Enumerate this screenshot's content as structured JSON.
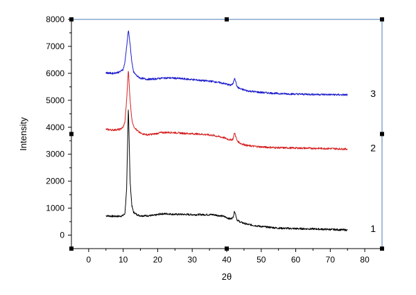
{
  "chart_data": {
    "type": "line",
    "title": "",
    "xlabel": "2θ",
    "ylabel": "Intensity",
    "xlim": [
      -5,
      85
    ],
    "ylim": [
      -500,
      8000
    ],
    "xticks": [
      0,
      10,
      20,
      30,
      40,
      50,
      60,
      70,
      80
    ],
    "yticks": [
      0,
      1000,
      2000,
      3000,
      4000,
      5000,
      6000,
      7000,
      8000
    ],
    "grid": false,
    "frame_color": "#4a7ab5",
    "series": [
      {
        "name": "1",
        "color": "#000000",
        "x": [
          5,
          7,
          9,
          10,
          10.5,
          11,
          11.5,
          12,
          12.5,
          13,
          14,
          15,
          17,
          19,
          21,
          23,
          25,
          27,
          30,
          33,
          36,
          39,
          41,
          41.8,
          42.3,
          43,
          44,
          46,
          50,
          55,
          60,
          65,
          70,
          75
        ],
        "values": [
          720,
          700,
          700,
          730,
          800,
          1700,
          4800,
          2000,
          1100,
          850,
          760,
          720,
          720,
          730,
          790,
          790,
          770,
          770,
          760,
          760,
          760,
          700,
          600,
          650,
          900,
          560,
          480,
          400,
          320,
          260,
          240,
          230,
          210,
          190
        ]
      },
      {
        "name": "2",
        "color": "#d62020",
        "x": [
          5,
          7,
          9,
          10,
          10.5,
          11,
          11.5,
          12,
          12.5,
          13,
          14,
          15,
          17,
          19,
          21,
          23,
          25,
          27,
          30,
          33,
          36,
          39,
          41,
          41.8,
          42.3,
          43,
          44,
          46,
          50,
          55,
          60,
          65,
          70,
          75
        ],
        "values": [
          3920,
          3900,
          3920,
          4000,
          4200,
          5000,
          6150,
          5000,
          4300,
          4050,
          3880,
          3780,
          3720,
          3750,
          3800,
          3810,
          3800,
          3780,
          3760,
          3740,
          3700,
          3620,
          3530,
          3560,
          3800,
          3500,
          3400,
          3320,
          3270,
          3240,
          3230,
          3220,
          3210,
          3190
        ]
      },
      {
        "name": "3",
        "color": "#1a1acc",
        "x": [
          5,
          7,
          9,
          10,
          10.5,
          11,
          11.5,
          12,
          12.5,
          13,
          14,
          15,
          17,
          19,
          21,
          23,
          25,
          27,
          30,
          33,
          36,
          39,
          41,
          41.8,
          42.3,
          43,
          44,
          46,
          50,
          55,
          60,
          65,
          70,
          75
        ],
        "values": [
          6020,
          6000,
          6050,
          6150,
          6400,
          7000,
          7600,
          7100,
          6400,
          6050,
          5900,
          5820,
          5780,
          5790,
          5820,
          5830,
          5820,
          5800,
          5770,
          5730,
          5700,
          5630,
          5560,
          5600,
          5850,
          5500,
          5420,
          5350,
          5290,
          5250,
          5230,
          5220,
          5210,
          5200
        ]
      }
    ]
  }
}
